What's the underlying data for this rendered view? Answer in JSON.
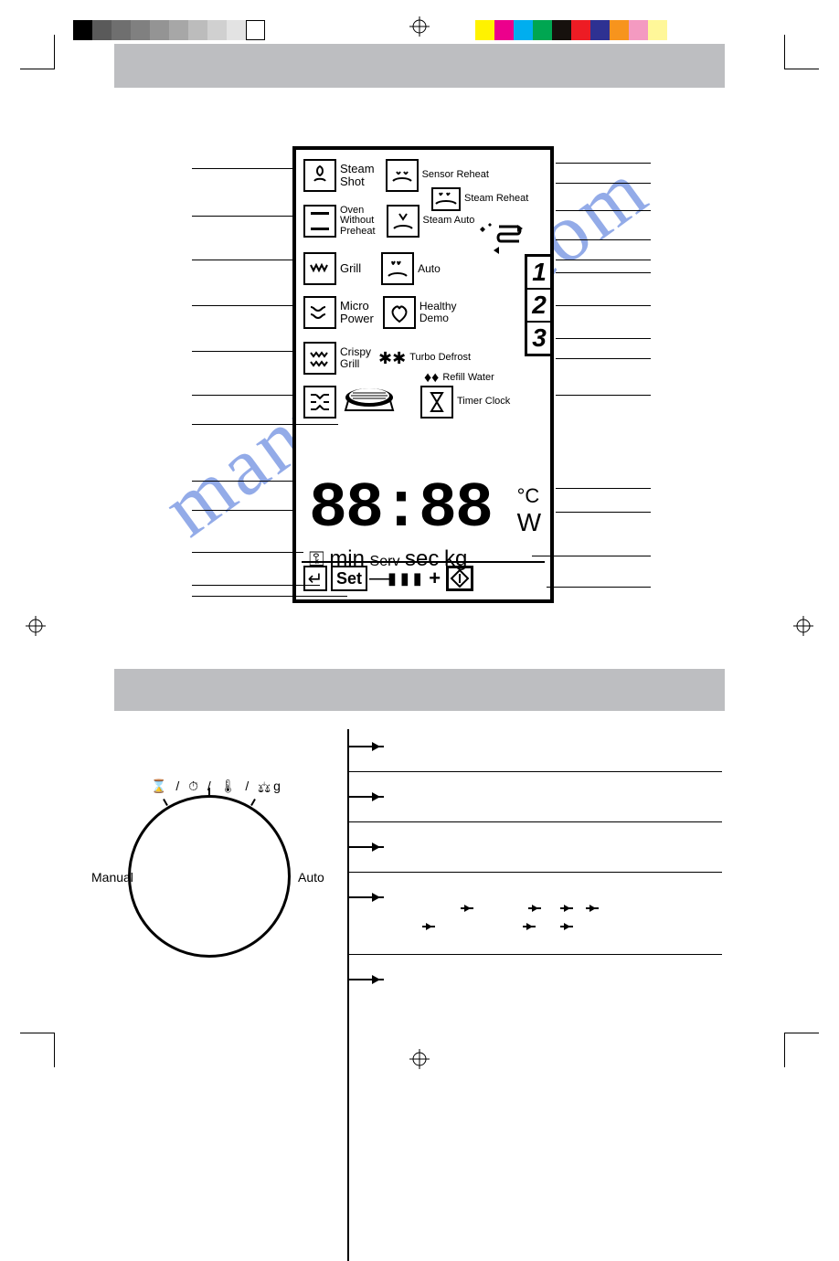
{
  "printer_color_bar_left": [
    "#000000",
    "#5a5a5a",
    "#6f6f6f",
    "#808080",
    "#949494",
    "#a7a7a7",
    "#bcbcbc",
    "#d0d0d0",
    "#e3e3e3",
    "#ffffff"
  ],
  "printer_color_bar_right": [
    "#fff200",
    "#ec008c",
    "#00aeef",
    "#00a651",
    "#16110d",
    "#ed1c24",
    "#2e3192",
    "#f7941d",
    "#f49ac1",
    "#fff799"
  ],
  "watermark_text": "manualslib.com",
  "watermark_color": "#4a72d8",
  "header_bar_color": "#bdbec1",
  "section2_bar_color": "#bdbec1",
  "display": {
    "left_items": [
      {
        "icon": "steam-shot-icon",
        "label": "Steam\nShot"
      },
      {
        "icon": "oven-no-preheat-icon",
        "label": "Oven\nWithout\nPreheat"
      },
      {
        "icon": "grill-icon",
        "label": "Grill"
      },
      {
        "icon": "micro-power-icon",
        "label": "Micro\nPower"
      },
      {
        "icon": "crispy-grill-icon",
        "label": "Crispy\nGrill"
      }
    ],
    "right_items": [
      {
        "icon": "sensor-reheat-icon",
        "label": "Sensor Reheat"
      },
      {
        "icon": "steam-reheat-icon",
        "label": "Steam Reheat"
      },
      {
        "icon": "steam-auto-icon",
        "label": "Steam Auto"
      },
      {
        "icon": "auto-icon",
        "label": "Auto"
      },
      {
        "icon": "healthy-icon",
        "label": "Healthy\nDemo"
      },
      {
        "icon": "turbo-defrost-icon",
        "label": "Turbo Defrost"
      },
      {
        "icon": "refill-water-icon",
        "label": "Refill Water"
      },
      {
        "icon": "timer-clock-icon",
        "label": "Timer Clock"
      }
    ],
    "side_numbers": [
      "1",
      "2",
      "3"
    ],
    "seven_segment": "88:88",
    "degree_c": "°C",
    "watt_w": "W",
    "units_line": {
      "lock": "🔑",
      "min": "min",
      "serv": "Serv",
      "sec": "sec",
      "kg": "kg"
    },
    "set_row": {
      "enter": "↵",
      "set": "Set",
      "minus": "—",
      "bars": "▮▮▮",
      "plus": "+",
      "diamond": "◇"
    }
  },
  "dial": {
    "top_symbols": "⌛ / ⏱ / 🌡 / ⚖g",
    "left_label": "Manual",
    "right_label": "Auto"
  },
  "flow_rows": 5,
  "colors": {
    "black": "#000000",
    "white": "#ffffff",
    "grey_bar": "#bdbec1"
  }
}
